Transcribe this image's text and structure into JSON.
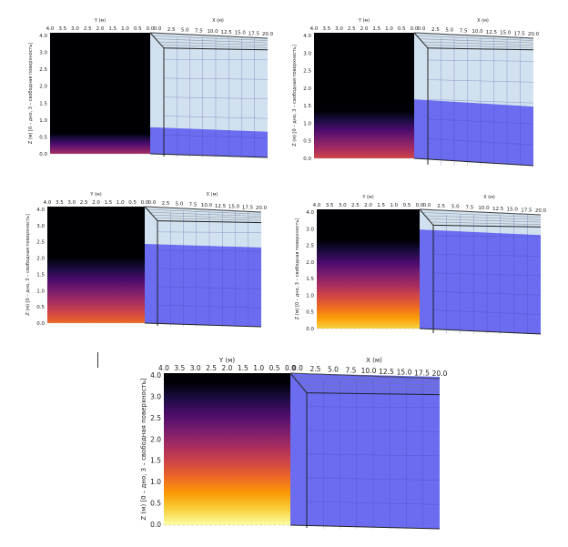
{
  "colors": {
    "background": "#ffffff",
    "water_blue": "#6b6cf0",
    "air_blue": "#d2e1ef",
    "grid_line": "#3b3fa8",
    "frame_line": "#222222",
    "heat_stops": [
      "#000004",
      "#1b0c41",
      "#4a0c6b",
      "#781c6d",
      "#a52c60",
      "#cf4446",
      "#ed6925",
      "#fb9b06",
      "#f7d13d",
      "#fcffa4"
    ]
  },
  "axis_labels": {
    "y_axis": "Y (м)",
    "x_axis": "X (м)",
    "z_axis": "Z (м) [0 – дно, 3 – свободная поверхность]"
  },
  "y_ticks": [
    "4.0",
    "3.5",
    "3.0",
    "2.5",
    "2.0",
    "1.5",
    "1.0",
    "0.5",
    "0.0"
  ],
  "x_ticks": [
    "0.0",
    "2.5",
    "5.0",
    "7.5",
    "10.0",
    "12.5",
    "15.0",
    "17.5",
    "20.0"
  ],
  "panels": [
    {
      "z_ticks": [
        "4.0",
        "3.0",
        "2.5",
        "2.0",
        "1.5",
        "1.0",
        "0.5",
        "0.0"
      ],
      "water_level": 0.22,
      "heat_extent": 0.17,
      "heat_top_stop": 4
    },
    {
      "z_ticks": [
        "4.0",
        "3.0",
        "2.5",
        "2.0",
        "1.5",
        "1.0",
        "0.5",
        "0.0"
      ],
      "water_level": 0.47,
      "heat_extent": 0.38,
      "heat_top_stop": 5
    },
    {
      "z_ticks": [
        "4.0",
        "3.0",
        "2.5",
        "2.0",
        "1.5",
        "1.0",
        "0.5",
        "0.0"
      ],
      "water_level": 0.68,
      "heat_extent": 0.56,
      "heat_top_stop": 6
    },
    {
      "z_ticks": [
        "4.0",
        "3.0",
        "2.5",
        "2.0",
        "1.5",
        "1.0",
        "0.5",
        "0.0"
      ],
      "water_level": 0.83,
      "heat_extent": 0.74,
      "heat_top_stop": 8
    },
    {
      "z_ticks": [
        "4.0",
        "3.0",
        "2.5",
        "2.0",
        "1.5",
        "1.0",
        "0.5",
        "0.0"
      ],
      "water_level": 1.0,
      "heat_extent": 0.94,
      "heat_top_stop": 9
    }
  ]
}
